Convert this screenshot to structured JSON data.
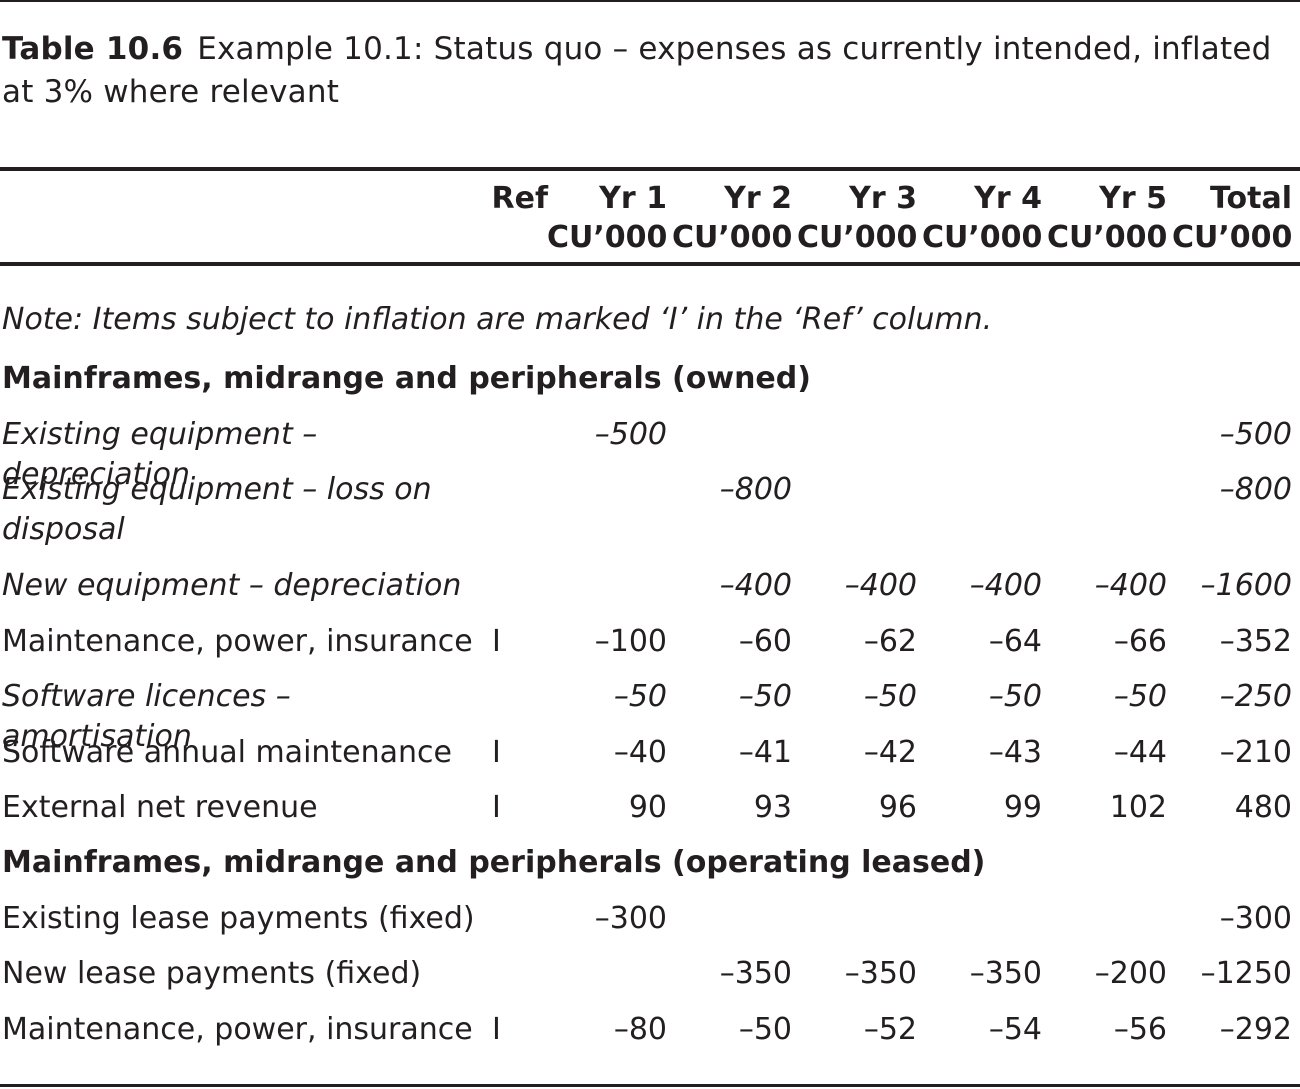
{
  "caption": {
    "number": "Table 10.6",
    "text": "Example 10.1: Status quo – expenses as currently intended, inflated at 3% where relevant"
  },
  "header": {
    "ref": "Ref",
    "columns": [
      {
        "line1": "Yr 1",
        "line2": "CU’000"
      },
      {
        "line1": "Yr 2",
        "line2": "CU’000"
      },
      {
        "line1": "Yr 3",
        "line2": "CU’000"
      },
      {
        "line1": "Yr 4",
        "line2": "CU’000"
      },
      {
        "line1": "Yr 5",
        "line2": "CU’000"
      },
      {
        "line1": "Total",
        "line2": "CU’000"
      }
    ]
  },
  "note": "Note: Items subject to inflation are marked ‘I’ in the ‘Ref’ column.",
  "rows": [
    {
      "type": "section",
      "label": "Mainframes, midrange and peripherals (owned)"
    },
    {
      "type": "item",
      "italic": true,
      "label": "Existing equipment – depreciation",
      "ref": "",
      "values": [
        "–500",
        "",
        "",
        "",
        "",
        "–500"
      ]
    },
    {
      "type": "item",
      "italic": true,
      "label": "Existing equipment – loss on disposal",
      "ref": "",
      "values": [
        "",
        "–800",
        "",
        "",
        "",
        "–800"
      ]
    },
    {
      "type": "item",
      "italic": true,
      "label": "New equipment – depreciation",
      "ref": "",
      "values": [
        "",
        "–400",
        "–400",
        "–400",
        "–400",
        "–1600"
      ]
    },
    {
      "type": "item",
      "italic": false,
      "label": "Maintenance, power, insurance",
      "ref": "I",
      "values": [
        "–100",
        "–60",
        "–62",
        "–64",
        "–66",
        "–352"
      ]
    },
    {
      "type": "item",
      "italic": true,
      "label": "Software licences – amortisation",
      "ref": "",
      "values": [
        "–50",
        "–50",
        "–50",
        "–50",
        "–50",
        "–250"
      ]
    },
    {
      "type": "item",
      "italic": false,
      "label": "Software annual maintenance",
      "ref": "I",
      "values": [
        "–40",
        "–41",
        "–42",
        "–43",
        "–44",
        "–210"
      ]
    },
    {
      "type": "item",
      "italic": false,
      "label": "External net revenue",
      "ref": "I",
      "values": [
        "90",
        "93",
        "96",
        "99",
        "102",
        "480"
      ]
    },
    {
      "type": "section",
      "label": "Mainframes, midrange and peripherals (operating leased)"
    },
    {
      "type": "item",
      "italic": false,
      "label": "Existing lease payments (fixed)",
      "ref": "",
      "values": [
        "–300",
        "",
        "",
        "",
        "",
        "–300"
      ]
    },
    {
      "type": "item",
      "italic": false,
      "label": "New lease payments (fixed)",
      "ref": "",
      "values": [
        "",
        "–350",
        "–350",
        "–350",
        "–200",
        "–1250"
      ]
    },
    {
      "type": "item",
      "italic": false,
      "label": "Maintenance, power, insurance",
      "ref": "I",
      "values": [
        "–80",
        "–50",
        "–52",
        "–54",
        "–56",
        "–292"
      ]
    }
  ]
}
